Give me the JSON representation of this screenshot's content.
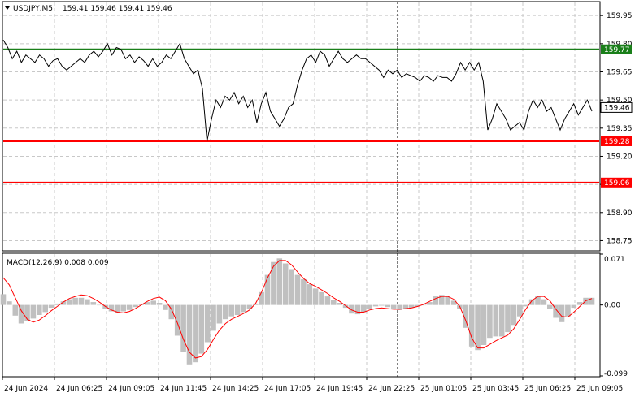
{
  "header": {
    "symbol_timeframe": "USDJPY,M5",
    "ohlc": "159.41 159.46 159.41 159.46"
  },
  "indicator": {
    "label": "MACD(12,26,9) 0.008 0.009"
  },
  "colors": {
    "price_line": "#000000",
    "green_level": "#1a7f1a",
    "red_level": "#ff0000",
    "histogram": "#c0c0c0",
    "signal_line": "#ff0000",
    "grid": "#c8c8c8",
    "current_price_tag": "#ffffff"
  },
  "chart_data": [
    {
      "type": "line",
      "title": "",
      "ylim": [
        158.7,
        160.02
      ],
      "y_ticks": [
        "159.95",
        "159.80",
        "159.65",
        "159.50",
        "159.35",
        "159.20",
        "159.05",
        "158.90",
        "158.75"
      ],
      "levels": [
        {
          "value": 159.77,
          "label": "159.77",
          "color": "green"
        },
        {
          "value": 159.28,
          "label": "159.28",
          "color": "red"
        },
        {
          "value": 159.06,
          "label": "159.06",
          "color": "red"
        }
      ],
      "current_price": {
        "value": 159.46,
        "label": "159.46"
      },
      "series": [
        {
          "values": [
            159.82,
            159.78,
            159.72,
            159.76,
            159.7,
            159.74,
            159.72,
            159.7,
            159.74,
            159.72,
            159.68,
            159.71,
            159.72,
            159.68,
            159.66,
            159.68,
            159.7,
            159.72,
            159.7,
            159.74,
            159.76,
            159.73,
            159.76,
            159.8,
            159.74,
            159.78,
            159.77,
            159.72,
            159.74,
            159.7,
            159.73,
            159.71,
            159.68,
            159.72,
            159.68,
            159.7,
            159.74,
            159.72,
            159.76,
            159.8,
            159.72,
            159.68,
            159.64,
            159.66,
            159.56,
            159.28,
            159.4,
            159.5,
            159.46,
            159.52,
            159.5,
            159.54,
            159.48,
            159.52,
            159.46,
            159.5,
            159.38,
            159.48,
            159.54,
            159.44,
            159.4,
            159.36,
            159.4,
            159.46,
            159.48,
            159.58,
            159.66,
            159.72,
            159.74,
            159.7,
            159.76,
            159.74,
            159.68,
            159.72,
            159.76,
            159.72,
            159.7,
            159.72,
            159.74,
            159.72,
            159.72,
            159.7,
            159.68,
            159.66,
            159.62,
            159.66,
            159.64,
            159.66,
            159.62,
            159.64,
            159.63,
            159.62,
            159.6,
            159.63,
            159.62,
            159.6,
            159.63,
            159.62,
            159.62,
            159.6,
            159.64,
            159.7,
            159.66,
            159.7,
            159.66,
            159.7,
            159.6,
            159.34,
            159.4,
            159.48,
            159.44,
            159.4,
            159.34,
            159.36,
            159.38,
            159.34,
            159.44,
            159.5,
            159.46,
            159.5,
            159.44,
            159.46,
            159.4,
            159.34,
            159.4,
            159.44,
            159.48,
            159.42,
            159.46,
            159.5,
            159.44
          ]
        }
      ]
    },
    {
      "type": "bar",
      "title": "MACD(12,26,9)",
      "ylim": [
        -0.099,
        0.071
      ],
      "y_ticks": [
        "0.071",
        "0.00",
        "-0.099"
      ],
      "x_tick_labels": [
        "24 Jun 2024",
        "24 Jun 06:25",
        "24 Jun 09:05",
        "24 Jun 11:45",
        "24 Jun 14:25",
        "24 Jun 17:05",
        "24 Jun 19:45",
        "24 Jun 22:25",
        "25 Jun 01:05",
        "25 Jun 03:45",
        "25 Jun 06:25",
        "25 Jun 09:05"
      ],
      "series": [
        {
          "name": "histogram",
          "values": [
            0.015,
            0.005,
            -0.015,
            -0.026,
            -0.022,
            -0.019,
            -0.014,
            -0.01,
            -0.004,
            0.002,
            0.005,
            0.008,
            0.01,
            0.01,
            0.008,
            0.004,
            0.0,
            -0.006,
            -0.009,
            -0.011,
            -0.009,
            -0.007,
            -0.003,
            0.001,
            0.004,
            0.006,
            0.003,
            -0.007,
            -0.02,
            -0.043,
            -0.066,
            -0.083,
            -0.08,
            -0.068,
            -0.052,
            -0.036,
            -0.026,
            -0.02,
            -0.016,
            -0.014,
            -0.01,
            -0.006,
            0.002,
            0.018,
            0.042,
            0.06,
            0.065,
            0.058,
            0.05,
            0.042,
            0.036,
            0.029,
            0.023,
            0.018,
            0.012,
            0.007,
            0.003,
            -0.004,
            -0.012,
            -0.013,
            -0.01,
            -0.005,
            -0.002,
            -0.001,
            -0.003,
            -0.006,
            -0.007,
            -0.006,
            -0.004,
            -0.002,
            0.0,
            0.004,
            0.012,
            0.014,
            0.012,
            0.006,
            -0.006,
            -0.032,
            -0.058,
            -0.063,
            -0.056,
            -0.046,
            -0.044,
            -0.044,
            -0.038,
            -0.028,
            -0.016,
            -0.002,
            0.008,
            0.012,
            0.008,
            -0.006,
            -0.018,
            -0.024,
            -0.016,
            -0.004,
            0.004,
            0.01,
            0.01
          ]
        },
        {
          "name": "signal",
          "values": [
            0.038,
            0.028,
            0.01,
            -0.008,
            -0.02,
            -0.024,
            -0.021,
            -0.015,
            -0.008,
            -0.002,
            0.004,
            0.009,
            0.012,
            0.014,
            0.013,
            0.009,
            0.004,
            -0.002,
            -0.007,
            -0.01,
            -0.011,
            -0.009,
            -0.005,
            0.0,
            0.005,
            0.009,
            0.011,
            0.006,
            -0.006,
            -0.025,
            -0.048,
            -0.066,
            -0.074,
            -0.072,
            -0.062,
            -0.048,
            -0.035,
            -0.026,
            -0.02,
            -0.016,
            -0.012,
            -0.007,
            0.002,
            0.018,
            0.038,
            0.054,
            0.062,
            0.062,
            0.056,
            0.046,
            0.037,
            0.03,
            0.026,
            0.021,
            0.016,
            0.01,
            0.005,
            -0.001,
            -0.007,
            -0.01,
            -0.01,
            -0.007,
            -0.005,
            -0.004,
            -0.005,
            -0.006,
            -0.006,
            -0.005,
            -0.004,
            -0.002,
            0.001,
            0.005,
            0.009,
            0.012,
            0.012,
            0.008,
            -0.002,
            -0.022,
            -0.046,
            -0.06,
            -0.06,
            -0.055,
            -0.05,
            -0.046,
            -0.042,
            -0.033,
            -0.02,
            -0.006,
            0.006,
            0.012,
            0.012,
            0.006,
            -0.006,
            -0.016,
            -0.017,
            -0.01,
            -0.002,
            0.006,
            0.009
          ]
        }
      ]
    }
  ]
}
